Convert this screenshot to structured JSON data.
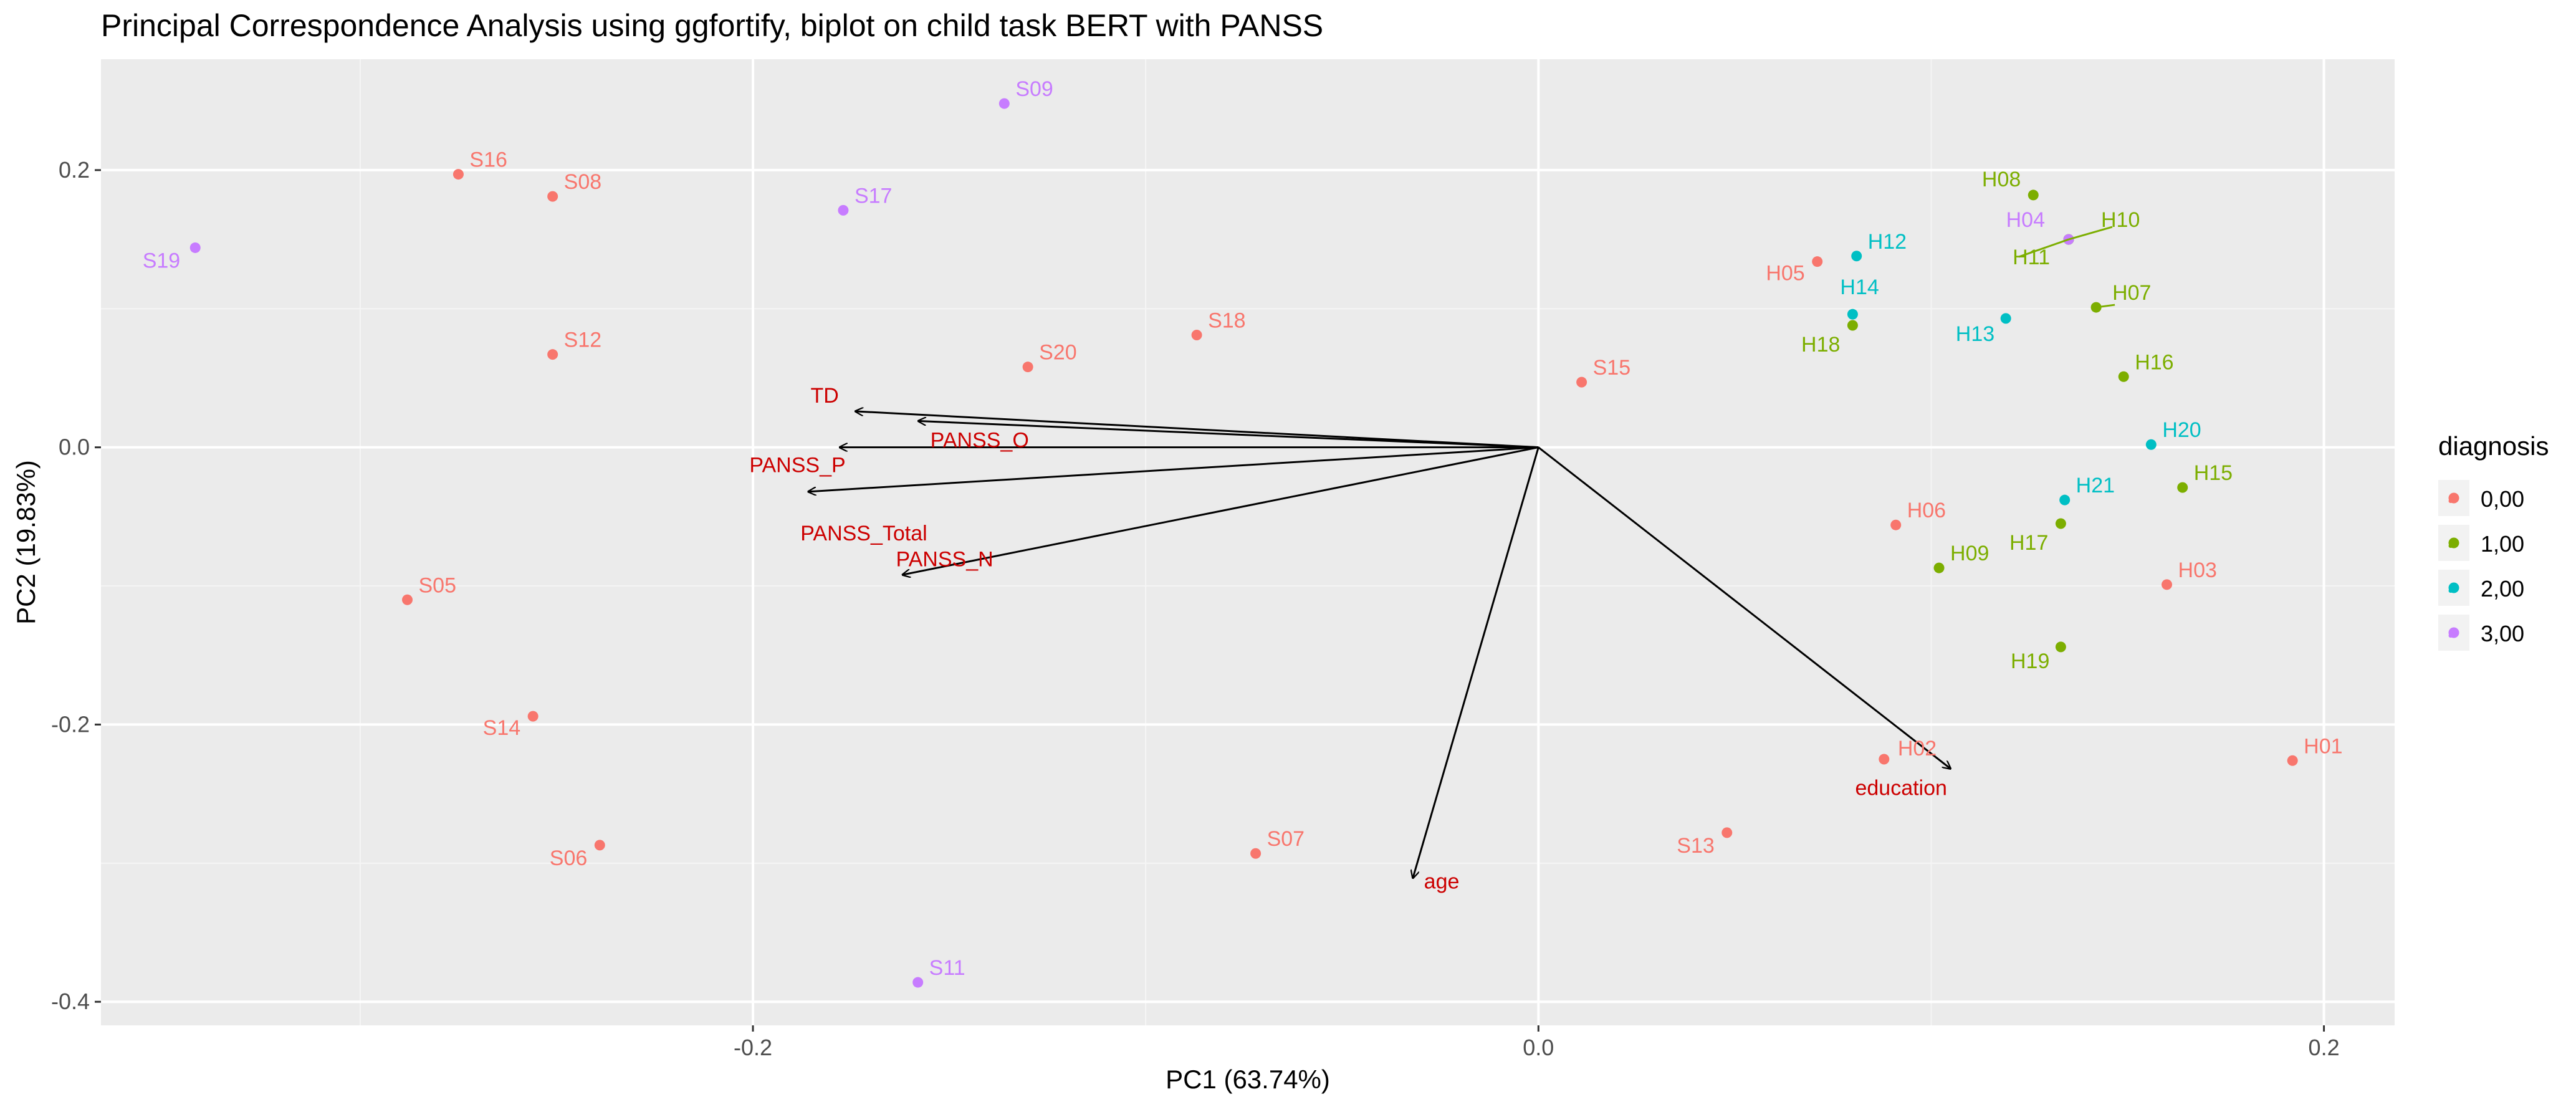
{
  "chart_data": {
    "type": "scatter",
    "title": "Principal Correspondence Analysis using ggfortify, biplot on child task BERT with PANSS",
    "xlabel": "PC1 (63.74%)",
    "ylabel": "PC2 (19.83%)",
    "xlim": [
      -0.366,
      0.218
    ],
    "ylim": [
      -0.417,
      0.28
    ],
    "x_ticks": [
      -0.2,
      0.0,
      0.2
    ],
    "x_tick_labels": [
      "-0.2",
      "0.0",
      "0.2"
    ],
    "y_ticks": [
      -0.4,
      -0.2,
      0.0,
      0.2
    ],
    "y_tick_labels": [
      "-0.4",
      "-0.2",
      "0.0",
      "0.2"
    ],
    "grid": true,
    "legend": {
      "title": "diagnosis",
      "position": "right",
      "entries": [
        {
          "label": "0,00",
          "color": "#F8766D"
        },
        {
          "label": "1,00",
          "color": "#7CAE00"
        },
        {
          "label": "2,00",
          "color": "#00BFC4"
        },
        {
          "label": "3,00",
          "color": "#C77CFF"
        }
      ]
    },
    "series": [
      {
        "name": "0,00",
        "color": "#F8766D",
        "points": [
          {
            "label": "S16",
            "x": -0.275,
            "y": 0.197
          },
          {
            "label": "S08",
            "x": -0.251,
            "y": 0.181
          },
          {
            "label": "S12",
            "x": -0.251,
            "y": 0.067
          },
          {
            "label": "S05",
            "x": -0.288,
            "y": -0.11
          },
          {
            "label": "S14",
            "x": -0.256,
            "y": -0.194
          },
          {
            "label": "S06",
            "x": -0.239,
            "y": -0.287
          },
          {
            "label": "S20",
            "x": -0.13,
            "y": 0.058
          },
          {
            "label": "S18",
            "x": -0.087,
            "y": 0.081
          },
          {
            "label": "S07",
            "x": -0.072,
            "y": -0.293
          },
          {
            "label": "S15",
            "x": 0.011,
            "y": 0.047
          },
          {
            "label": "S13",
            "x": 0.048,
            "y": -0.278
          },
          {
            "label": "H05",
            "x": 0.071,
            "y": 0.134
          },
          {
            "label": "H06",
            "x": 0.091,
            "y": -0.056
          },
          {
            "label": "H02",
            "x": 0.088,
            "y": -0.225
          },
          {
            "label": "H03",
            "x": 0.16,
            "y": -0.099
          },
          {
            "label": "H01",
            "x": 0.192,
            "y": -0.226
          }
        ]
      },
      {
        "name": "1,00",
        "color": "#7CAE00",
        "points": [
          {
            "label": "H08",
            "x": 0.126,
            "y": 0.182
          },
          {
            "label": "H10",
            "x": 0.135,
            "y": 0.15
          },
          {
            "label": "H11",
            "x": 0.135,
            "y": 0.15
          },
          {
            "label": "H07",
            "x": 0.142,
            "y": 0.101
          },
          {
            "label": "H18",
            "x": 0.08,
            "y": 0.088
          },
          {
            "label": "H16",
            "x": 0.149,
            "y": 0.051
          },
          {
            "label": "H15",
            "x": 0.164,
            "y": -0.029
          },
          {
            "label": "H17",
            "x": 0.133,
            "y": -0.055
          },
          {
            "label": "H09",
            "x": 0.102,
            "y": -0.087
          },
          {
            "label": "H19",
            "x": 0.133,
            "y": -0.144
          }
        ]
      },
      {
        "name": "2,00",
        "color": "#00BFC4",
        "points": [
          {
            "label": "H12",
            "x": 0.081,
            "y": 0.138
          },
          {
            "label": "H14",
            "x": 0.08,
            "y": 0.096
          },
          {
            "label": "H13",
            "x": 0.119,
            "y": 0.093
          },
          {
            "label": "H20",
            "x": 0.156,
            "y": 0.002
          },
          {
            "label": "H21",
            "x": 0.134,
            "y": -0.038
          }
        ]
      },
      {
        "name": "3,00",
        "color": "#C77CFF",
        "points": [
          {
            "label": "S09",
            "x": -0.136,
            "y": 0.248
          },
          {
            "label": "S17",
            "x": -0.177,
            "y": 0.171
          },
          {
            "label": "S19",
            "x": -0.342,
            "y": 0.144
          },
          {
            "label": "H04",
            "x": 0.135,
            "y": 0.15
          },
          {
            "label": "S11",
            "x": -0.158,
            "y": -0.386
          }
        ]
      }
    ],
    "loadings": [
      {
        "label": "TD",
        "x": -0.174,
        "y": 0.026
      },
      {
        "label": "PANSS_O",
        "x": -0.158,
        "y": 0.019
      },
      {
        "label": "PANSS_P",
        "x": -0.178,
        "y": 0.0
      },
      {
        "label": "PANSS_Total",
        "x": -0.186,
        "y": -0.032
      },
      {
        "label": "PANSS_N",
        "x": -0.162,
        "y": -0.092
      },
      {
        "label": "education",
        "x": 0.105,
        "y": -0.232
      },
      {
        "label": "age",
        "x": -0.032,
        "y": -0.311
      }
    ],
    "loading_color": "#CC0000"
  }
}
